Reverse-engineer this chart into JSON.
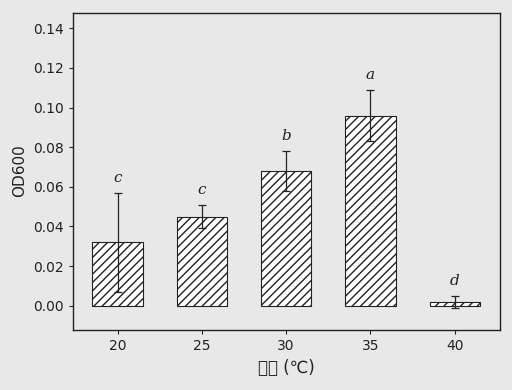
{
  "categories": [
    "20",
    "25",
    "30",
    "35",
    "40"
  ],
  "values": [
    0.032,
    0.045,
    0.068,
    0.096,
    0.002
  ],
  "errors": [
    0.025,
    0.006,
    0.01,
    0.013,
    0.003
  ],
  "letters": [
    "c",
    "c",
    "b",
    "a",
    "d"
  ],
  "bar_color": "#ffffff",
  "bar_edgecolor": "#222222",
  "hatch": "////",
  "xlabel": "温度 (℃)",
  "ylabel": "OD600",
  "ylim": [
    -0.012,
    0.148
  ],
  "yticks": [
    0.0,
    0.02,
    0.04,
    0.06,
    0.08,
    0.1,
    0.12,
    0.14
  ],
  "title": "",
  "bar_width": 0.6,
  "xlabel_fontsize": 12,
  "ylabel_fontsize": 11,
  "tick_fontsize": 10,
  "letter_fontsize": 11,
  "background_color": "#e8e8e8",
  "figure_facecolor": "#e8e8e8",
  "spine_color": "#222222",
  "spine_linewidth": 1.0
}
